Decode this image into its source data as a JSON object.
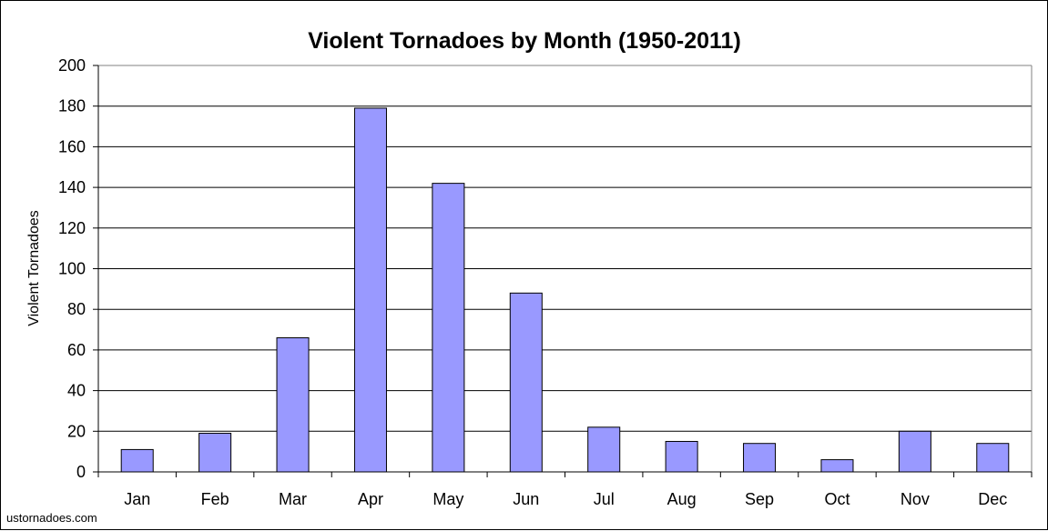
{
  "chart_data": {
    "type": "bar",
    "title": "Violent Tornadoes by Month (1950-2011)",
    "xlabel": "",
    "ylabel": "Violent Tornadoes",
    "categories": [
      "Jan",
      "Feb",
      "Mar",
      "Apr",
      "May",
      "Jun",
      "Jul",
      "Aug",
      "Sep",
      "Oct",
      "Nov",
      "Dec"
    ],
    "values": [
      11,
      19,
      66,
      179,
      142,
      88,
      22,
      15,
      14,
      6,
      20,
      14
    ],
    "ylim": [
      0,
      200
    ],
    "yticks": [
      "0",
      "20",
      "40",
      "60",
      "80",
      "100",
      "120",
      "140",
      "160",
      "180",
      "200"
    ],
    "grid": true,
    "legend": "none",
    "bar_color": "#9999ff",
    "plot_background": "#ffffff"
  },
  "watermark": "ustornadoes.com"
}
